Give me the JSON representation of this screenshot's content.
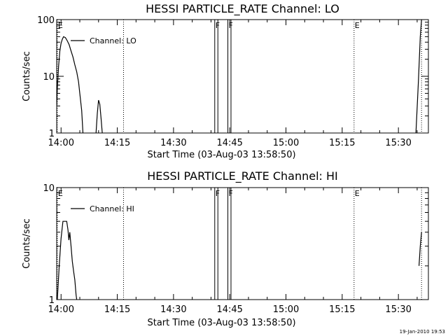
{
  "chart_data": [
    {
      "type": "line",
      "title": "HESSI PARTICLE_RATE Channel: LO",
      "xlabel": "Start Time (03-Aug-03 13:58:50)",
      "ylabel": "Counts/sec",
      "yscale": "log",
      "xlim": [
        "13:58:50",
        "15:38:00"
      ],
      "ylim": [
        1,
        100
      ],
      "xticks": [
        "14:00",
        "14:15",
        "14:30",
        "14:45",
        "15:00",
        "15:15",
        "15:30"
      ],
      "yticks": [
        "1",
        "10",
        "100"
      ],
      "grid": false,
      "legend_position": "top-left",
      "series": [
        {
          "name": "Channel: LO",
          "color": "#000000",
          "segments": [
            [
              [
                "13:58:50",
                3
              ],
              [
                "13:59:00",
                6
              ],
              [
                "13:59:20",
                15
              ],
              [
                "13:59:40",
                28
              ],
              [
                "14:00:00",
                38
              ],
              [
                "14:00:20",
                45
              ],
              [
                "14:00:40",
                50
              ],
              [
                "14:01:10",
                48
              ],
              [
                "14:01:40",
                42
              ],
              [
                "14:02:10",
                36
              ],
              [
                "14:02:40",
                28
              ],
              [
                "14:03:10",
                22
              ],
              [
                "14:03:40",
                16
              ],
              [
                "14:04:10",
                12
              ],
              [
                "14:04:40",
                8
              ],
              [
                "14:05:00",
                5
              ],
              [
                "14:05:30",
                2.5
              ],
              [
                "14:05:50",
                1
              ]
            ],
            [
              [
                "14:09:20",
                1
              ],
              [
                "14:09:40",
                2.2
              ],
              [
                "14:10:00",
                3.8
              ],
              [
                "14:10:20",
                3.2
              ],
              [
                "14:10:40",
                1.8
              ],
              [
                "14:11:00",
                1
              ]
            ],
            [
              [
                "15:34:40",
                1
              ],
              [
                "15:35:20",
                8
              ],
              [
                "15:35:50",
                50
              ],
              [
                "15:36:10",
                100
              ]
            ]
          ]
        }
      ],
      "markers": [
        {
          "label": "E",
          "time": "13:59:00",
          "style": "dotted"
        },
        {
          "label": "",
          "time": "14:16:40",
          "style": "dotted"
        },
        {
          "label": "F",
          "time": "14:41:00",
          "style": "solid"
        },
        {
          "label": "",
          "time": "14:41:50",
          "style": "solid"
        },
        {
          "label": "F",
          "time": "14:44:30",
          "style": "solid"
        },
        {
          "label": "",
          "time": "14:45:20",
          "style": "solid"
        },
        {
          "label": "E",
          "time": "15:18:10",
          "style": "dotted"
        },
        {
          "label": "",
          "time": "15:36:10",
          "style": "dotted"
        }
      ]
    },
    {
      "type": "line",
      "title": "HESSI PARTICLE_RATE Channel: HI",
      "xlabel": "Start Time (03-Aug-03 13:58:50)",
      "ylabel": "Counts/sec",
      "yscale": "log",
      "xlim": [
        "13:58:50",
        "15:38:00"
      ],
      "ylim": [
        1,
        10
      ],
      "xticks": [
        "14:00",
        "14:15",
        "14:30",
        "14:45",
        "15:00",
        "15:15",
        "15:30"
      ],
      "yticks": [
        "1",
        "10"
      ],
      "grid": false,
      "legend_position": "top-left",
      "series": [
        {
          "name": "Channel: HI",
          "color": "#000000",
          "segments": [
            [
              [
                "13:59:00",
                1
              ],
              [
                "13:59:30",
                2
              ],
              [
                "14:00:00",
                3.5
              ],
              [
                "14:00:30",
                5
              ],
              [
                "14:01:00",
                5
              ],
              [
                "14:01:30",
                5
              ],
              [
                "14:01:50",
                4.2
              ],
              [
                "14:02:05",
                3.4
              ],
              [
                "14:02:20",
                4
              ],
              [
                "14:02:40",
                3
              ],
              [
                "14:03:00",
                2.2
              ],
              [
                "14:03:20",
                1.8
              ],
              [
                "14:03:40",
                1.5
              ],
              [
                "14:04:00",
                1.1
              ],
              [
                "14:04:10",
                1
              ]
            ],
            [
              [
                "15:35:30",
                2
              ],
              [
                "15:35:50",
                3
              ],
              [
                "15:36:10",
                4
              ]
            ]
          ]
        }
      ],
      "markers": [
        {
          "label": "E",
          "time": "13:59:00",
          "style": "dotted"
        },
        {
          "label": "",
          "time": "14:16:40",
          "style": "dotted"
        },
        {
          "label": "F",
          "time": "14:41:00",
          "style": "solid"
        },
        {
          "label": "",
          "time": "14:41:50",
          "style": "solid"
        },
        {
          "label": "F",
          "time": "14:44:30",
          "style": "solid"
        },
        {
          "label": "",
          "time": "14:45:20",
          "style": "solid"
        },
        {
          "label": "E",
          "time": "15:18:10",
          "style": "dotted"
        },
        {
          "label": "",
          "time": "15:36:10",
          "style": "dotted"
        }
      ]
    }
  ],
  "footer": {
    "timestamp": "19-Jan-2010 19:53"
  }
}
